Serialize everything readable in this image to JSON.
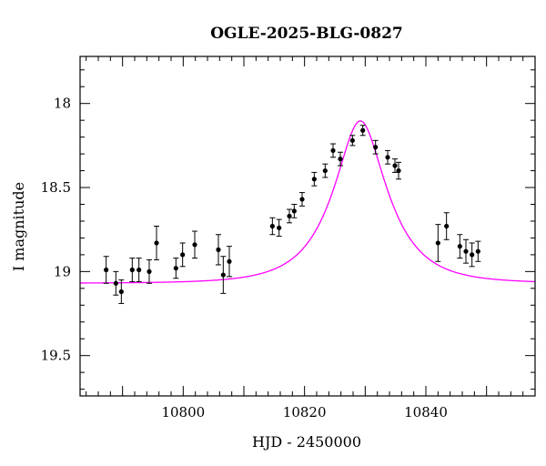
{
  "chart_data": {
    "type": "scatter",
    "title": "OGLE-2025-BLG-0827",
    "xlabel": "HJD - 2450000",
    "ylabel": "I magnitude",
    "xlim": [
      10783,
      10858
    ],
    "ylim": [
      17.72,
      19.74
    ],
    "y_inverted": true,
    "x_ticks": [
      10800,
      10820,
      10840
    ],
    "x_tick_labels": [
      "10800",
      "10820",
      "10840"
    ],
    "y_ticks": [
      18,
      18.5,
      19,
      19.5
    ],
    "y_tick_labels": [
      "18",
      "18.5",
      "19",
      "19.5"
    ],
    "grid": false,
    "series": [
      {
        "kind": "points_with_errorbars",
        "color": "#000000",
        "points": [
          {
            "x": 10787.3,
            "y": 18.99,
            "err": 0.08
          },
          {
            "x": 10788.9,
            "y": 19.07,
            "err": 0.07
          },
          {
            "x": 10789.8,
            "y": 19.12,
            "err": 0.07
          },
          {
            "x": 10791.6,
            "y": 18.99,
            "err": 0.07
          },
          {
            "x": 10792.7,
            "y": 18.99,
            "err": 0.07
          },
          {
            "x": 10794.4,
            "y": 19.0,
            "err": 0.07
          },
          {
            "x": 10795.6,
            "y": 18.83,
            "err": 0.1
          },
          {
            "x": 10798.8,
            "y": 18.98,
            "err": 0.06
          },
          {
            "x": 10799.9,
            "y": 18.9,
            "err": 0.07
          },
          {
            "x": 10801.9,
            "y": 18.84,
            "err": 0.08
          },
          {
            "x": 10805.8,
            "y": 18.87,
            "err": 0.09
          },
          {
            "x": 10806.6,
            "y": 19.02,
            "err": 0.11
          },
          {
            "x": 10807.6,
            "y": 18.94,
            "err": 0.09
          },
          {
            "x": 10814.7,
            "y": 18.73,
            "err": 0.05
          },
          {
            "x": 10815.8,
            "y": 18.74,
            "err": 0.05
          },
          {
            "x": 10817.5,
            "y": 18.67,
            "err": 0.04
          },
          {
            "x": 10818.3,
            "y": 18.64,
            "err": 0.04
          },
          {
            "x": 10819.6,
            "y": 18.57,
            "err": 0.04
          },
          {
            "x": 10821.6,
            "y": 18.45,
            "err": 0.04
          },
          {
            "x": 10823.4,
            "y": 18.4,
            "err": 0.04
          },
          {
            "x": 10824.7,
            "y": 18.28,
            "err": 0.04
          },
          {
            "x": 10825.9,
            "y": 18.33,
            "err": 0.04
          },
          {
            "x": 10827.9,
            "y": 18.22,
            "err": 0.03
          },
          {
            "x": 10829.6,
            "y": 18.16,
            "err": 0.03
          },
          {
            "x": 10831.7,
            "y": 18.26,
            "err": 0.04
          },
          {
            "x": 10833.7,
            "y": 18.32,
            "err": 0.04
          },
          {
            "x": 10834.9,
            "y": 18.37,
            "err": 0.04
          },
          {
            "x": 10835.5,
            "y": 18.4,
            "err": 0.05
          },
          {
            "x": 10842.0,
            "y": 18.83,
            "err": 0.11
          },
          {
            "x": 10843.4,
            "y": 18.73,
            "err": 0.08
          },
          {
            "x": 10845.6,
            "y": 18.85,
            "err": 0.07
          },
          {
            "x": 10846.6,
            "y": 18.88,
            "err": 0.07
          },
          {
            "x": 10847.6,
            "y": 18.9,
            "err": 0.07
          },
          {
            "x": 10848.6,
            "y": 18.88,
            "err": 0.06
          }
        ]
      },
      {
        "kind": "model_curve",
        "color": "#ff00ff",
        "model": "pspl",
        "t0": 10829.2,
        "tE": 8.1,
        "u0": 0.44,
        "baseline": 19.07
      }
    ]
  }
}
